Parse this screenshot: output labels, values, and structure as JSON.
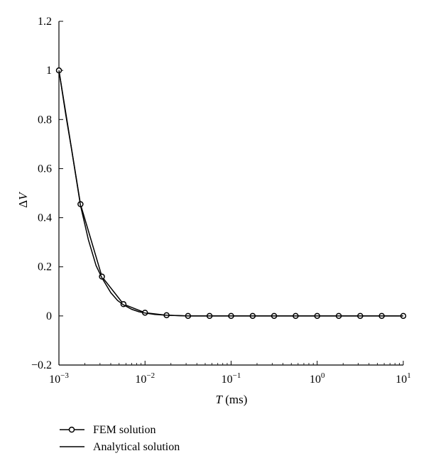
{
  "chart_data": {
    "type": "line",
    "title": "",
    "xlabel": {
      "var": "T",
      "unit": " (ms)"
    },
    "ylabel": {
      "prefix": "Δ",
      "var": "V"
    },
    "xscale": "log",
    "xlim": [
      0.001,
      10
    ],
    "ylim": [
      -0.2,
      1.2
    ],
    "yticks": [
      "−0.2",
      "0",
      "0.2",
      "0.4",
      "0.6",
      "0.8",
      "1",
      "1.2"
    ],
    "ytick_values": [
      -0.2,
      0,
      0.2,
      0.4,
      0.6,
      0.8,
      1,
      1.2
    ],
    "xticks": [
      {
        "value": 0.001,
        "base": "10",
        "exp": "−3"
      },
      {
        "value": 0.01,
        "base": "10",
        "exp": "−2"
      },
      {
        "value": 0.1,
        "base": "10",
        "exp": "−1"
      },
      {
        "value": 1,
        "base": "10",
        "exp": "0"
      },
      {
        "value": 10,
        "base": "10",
        "exp": "1"
      }
    ],
    "grid": false,
    "legend_position": "bottom-left",
    "series": [
      {
        "name": "FEM solution",
        "style": "line-with-circle-markers",
        "color": "#000000",
        "x": [
          0.001,
          0.00178,
          0.00316,
          0.00562,
          0.01,
          0.0178,
          0.0316,
          0.0562,
          0.1,
          0.178,
          0.316,
          0.562,
          1,
          1.78,
          3.16,
          5.62,
          10
        ],
        "y": [
          1.0,
          0.455,
          0.16,
          0.048,
          0.013,
          0.003,
          0.0,
          0.0,
          0.0,
          0.0,
          0.0,
          0.0,
          0.0,
          0.0,
          0.0,
          0.0,
          0.0
        ]
      },
      {
        "name": "Analytical solution",
        "style": "line",
        "color": "#000000",
        "x": [
          0.001,
          0.0012,
          0.0014,
          0.00178,
          0.0022,
          0.0027,
          0.00316,
          0.004,
          0.0048,
          0.00562,
          0.007,
          0.0085,
          0.01,
          0.013,
          0.0178,
          0.025,
          0.0316,
          0.1,
          1,
          10
        ],
        "y": [
          1.0,
          0.82,
          0.68,
          0.45,
          0.31,
          0.205,
          0.155,
          0.095,
          0.063,
          0.045,
          0.027,
          0.017,
          0.012,
          0.006,
          0.003,
          0.001,
          0.0,
          0.0,
          0.0,
          0.0
        ]
      }
    ]
  }
}
